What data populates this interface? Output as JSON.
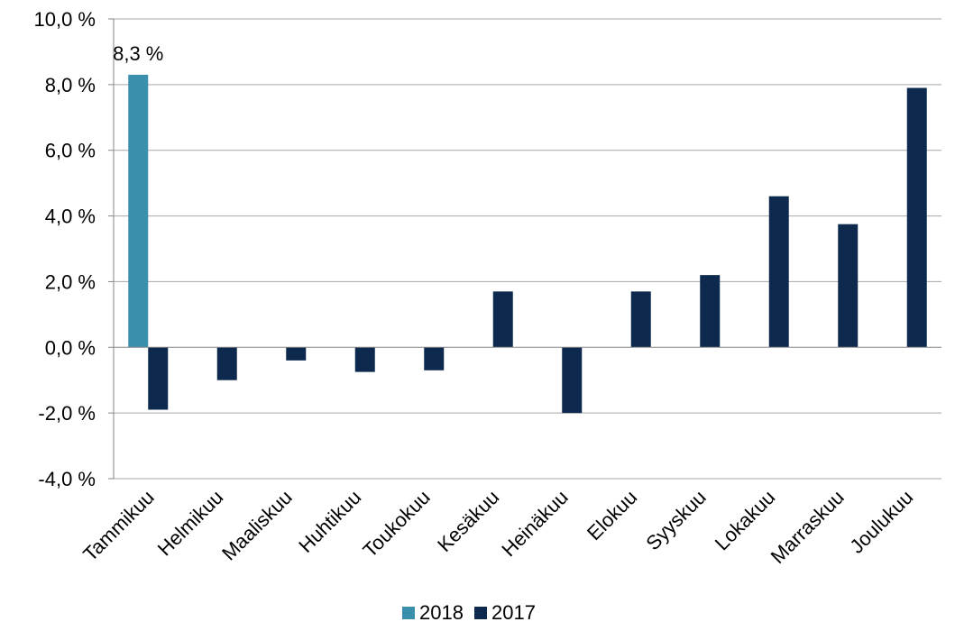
{
  "chart_data": {
    "type": "bar",
    "categories": [
      "Tammikuu",
      "Helmikuu",
      "Maaliskuu",
      "Huhtikuu",
      "Toukokuu",
      "Kesäkuu",
      "Heinäkuu",
      "Elokuu",
      "Syyskuu",
      "Lokakuu",
      "Marraskuu",
      "Joulukuu"
    ],
    "series": [
      {
        "name": "2018",
        "color": "#3a8fad",
        "values": [
          8.3,
          null,
          null,
          null,
          null,
          null,
          null,
          null,
          null,
          null,
          null,
          null
        ]
      },
      {
        "name": "2017",
        "color": "#0d2a4e",
        "values": [
          -1.9,
          -1.0,
          -0.4,
          -0.75,
          -0.7,
          1.7,
          -2.0,
          1.7,
          2.2,
          4.6,
          3.75,
          7.9
        ]
      }
    ],
    "data_labels": [
      {
        "series": "2018",
        "category": "Tammikuu",
        "text": "8,3 %"
      }
    ],
    "ylim": [
      -4.0,
      10.0
    ],
    "ytick_values": [
      -4,
      -2,
      0,
      2,
      4,
      6,
      8,
      10
    ],
    "ytick_labels": [
      "-4,0 %",
      "-2,0 %",
      "0,0 %",
      "2,0 %",
      "4,0 %",
      "6,0 %",
      "8,0 %",
      "10,0 %"
    ],
    "title": "",
    "xlabel": "",
    "ylabel": "",
    "grid": true,
    "legend_position": "bottom"
  }
}
